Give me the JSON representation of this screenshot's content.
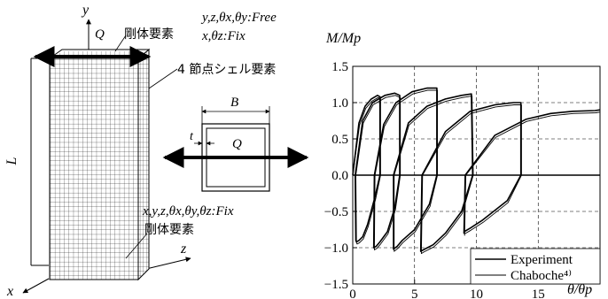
{
  "model": {
    "labels": {
      "load_q_top": "Q",
      "top_bc_free": "y,z,θx,θy:Free",
      "top_bc_fix": "x,θz:Fix",
      "rigid_top": "剛体要素",
      "shell": "4 節点シェル要素",
      "length": "L",
      "bottom_bc_fix": "x,y,z,θx,θy,θz:Fix",
      "rigid_bottom": "剛体要素",
      "axis_y": "y",
      "axis_z": "z",
      "axis_x": "x"
    },
    "section": {
      "width_label": "B",
      "thickness_label": "t",
      "load_label": "Q"
    }
  },
  "chart_data": {
    "type": "line",
    "xlabel": "θ/θp",
    "ylabel": "M/Mp",
    "xlim": [
      0,
      20
    ],
    "ylim": [
      -1.5,
      1.5
    ],
    "xticks": [
      0,
      5,
      10,
      15
    ],
    "yticks": [
      1.5,
      1.0,
      0.5,
      0.0,
      -0.5,
      -1.0,
      -1.5
    ],
    "xtick_labels": [
      "0",
      "5",
      "10",
      "15"
    ],
    "ytick_labels": [
      "1.5",
      "1.0",
      "0.5",
      "0.0",
      "−0.5",
      "−1.0",
      "−1.5"
    ],
    "grid": true,
    "legend_position": "bottom-right",
    "series": [
      {
        "name": "Experiment",
        "style": "solid",
        "x": [
          0,
          0.5,
          1.0,
          1.5,
          2.0,
          2.2,
          2.2,
          1.8,
          1.2,
          0.8,
          0.5,
          0.3,
          0.25,
          0.2,
          0.8,
          1.6,
          2.6,
          3.4,
          3.8,
          3.8,
          3.4,
          2.8,
          2.2,
          1.9,
          1.7,
          1.75,
          2.5,
          3.5,
          4.8,
          6.0,
          6.8,
          6.8,
          6.2,
          5.0,
          4.0,
          3.6,
          3.3,
          3.3,
          4.5,
          6.0,
          7.5,
          8.8,
          9.6,
          9.7,
          8.8,
          7.5,
          6.5,
          5.7,
          5.5,
          5.6,
          7.5,
          9.5,
          11.5,
          13.0,
          13.6,
          13.6,
          12.5,
          10.5,
          9.5,
          9.0,
          9.0,
          9.1,
          11.5,
          14.0,
          16.0,
          17.8,
          19.6,
          20.0
        ],
        "y": [
          0,
          0.72,
          0.95,
          1.05,
          1.1,
          1.08,
          0,
          -0.3,
          -0.68,
          -0.85,
          -0.9,
          -0.92,
          -0.9,
          0,
          0.75,
          1.0,
          1.1,
          1.13,
          1.1,
          0,
          -0.45,
          -0.78,
          -0.92,
          -0.98,
          -1.0,
          0,
          0.7,
          1.0,
          1.15,
          1.2,
          1.2,
          0,
          -0.4,
          -0.75,
          -0.9,
          -0.98,
          -1.02,
          0,
          0.72,
          0.95,
          1.05,
          1.1,
          1.12,
          0,
          -0.5,
          -0.8,
          -0.96,
          -1.03,
          -1.05,
          0,
          0.6,
          0.88,
          0.97,
          1.0,
          1.0,
          0,
          -0.35,
          -0.62,
          -0.73,
          -0.78,
          -0.8,
          0,
          0.55,
          0.77,
          0.85,
          0.88,
          0.89,
          0.9
        ]
      },
      {
        "name": "Chaboche⁴⁾",
        "style": "solid-thin",
        "x": [
          0,
          0.55,
          1.05,
          1.55,
          2.05,
          2.25,
          2.25,
          1.85,
          1.25,
          0.85,
          0.55,
          0.35,
          0.3,
          0.25,
          0.85,
          1.65,
          2.65,
          3.45,
          3.85,
          3.85,
          3.45,
          2.85,
          2.25,
          1.95,
          1.75,
          1.8,
          2.55,
          3.55,
          4.85,
          6.05,
          6.85,
          6.85,
          6.25,
          5.05,
          4.05,
          3.65,
          3.35,
          3.35,
          4.55,
          6.05,
          7.55,
          8.85,
          9.65,
          9.75,
          8.85,
          7.55,
          6.55,
          5.75,
          5.55,
          5.65,
          7.55,
          9.55,
          11.55,
          13.05,
          13.65,
          13.65,
          12.55,
          10.55,
          9.55,
          9.05,
          9.05,
          9.15,
          11.55,
          14.05,
          16.05,
          17.85,
          19.65,
          20.0
        ],
        "y": [
          0,
          0.69,
          0.92,
          1.02,
          1.07,
          1.05,
          0,
          -0.33,
          -0.71,
          -0.88,
          -0.93,
          -0.95,
          -0.93,
          0,
          0.72,
          0.97,
          1.07,
          1.1,
          1.07,
          0,
          -0.48,
          -0.81,
          -0.95,
          -1.01,
          -1.03,
          0,
          0.67,
          0.97,
          1.12,
          1.17,
          1.17,
          0,
          -0.43,
          -0.78,
          -0.93,
          -1.01,
          -1.05,
          0,
          0.69,
          0.92,
          1.02,
          1.07,
          1.09,
          0,
          -0.53,
          -0.83,
          -0.99,
          -1.06,
          -1.08,
          0,
          0.57,
          0.85,
          0.94,
          0.97,
          0.97,
          0,
          -0.38,
          -0.65,
          -0.76,
          -0.81,
          -0.83,
          0,
          0.52,
          0.74,
          0.82,
          0.85,
          0.86,
          0.87
        ]
      }
    ]
  }
}
